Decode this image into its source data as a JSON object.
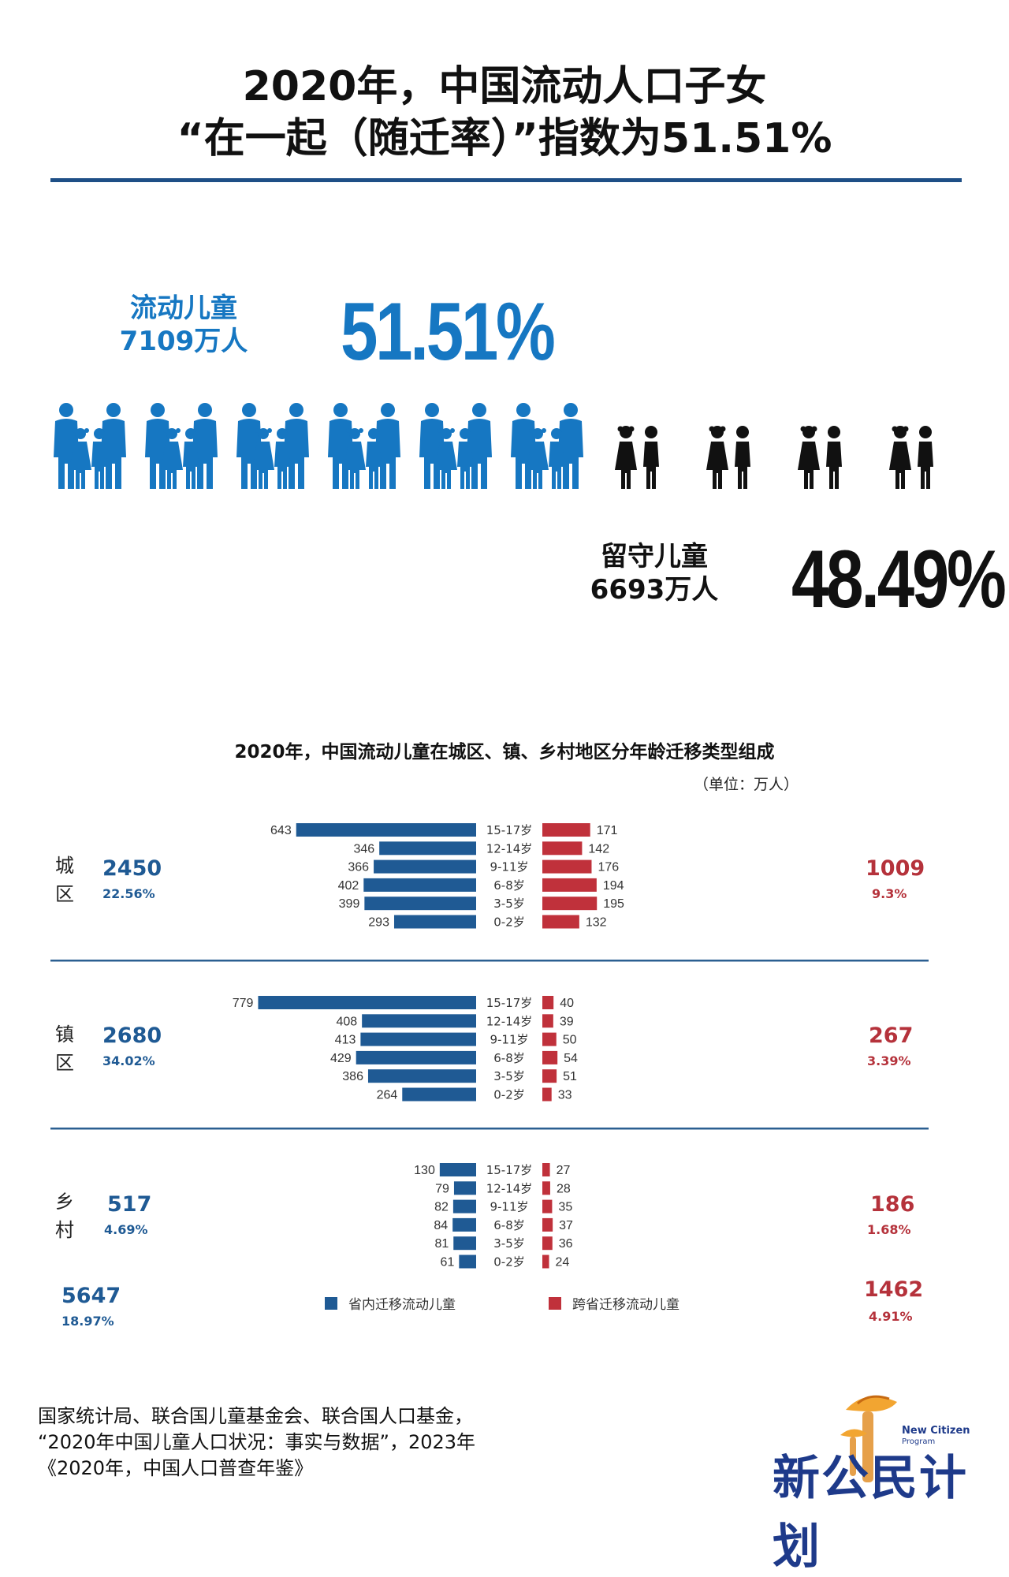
{
  "header": {
    "line1": "2020年，中国流动人口子女",
    "line2": "“在一起（随迁率）”指数为51.51%"
  },
  "flow": {
    "label_line1": "流动儿童",
    "label_line2": "7109万人",
    "percent": "51.51%",
    "fraction": 0.5151
  },
  "left_behind": {
    "label_line1": "留守儿童",
    "label_line2": "6693万人",
    "percent": "48.49%"
  },
  "colors": {
    "blue_icon": "#1677c2",
    "blue_bar": "#1f5a94",
    "red_bar": "#c0313b",
    "rule": "#1e4f86"
  },
  "chart_data": {
    "type": "bar",
    "title": "2020年，中国流动儿童在城区、镇、乡村地区分年龄迁移类型组成",
    "unit": "（单位：万人）",
    "categories": [
      "15-17岁",
      "12-14岁",
      "9-11岁",
      "6-8岁",
      "3-5岁",
      "0-2岁"
    ],
    "legend": [
      "省内迁移流动儿童",
      "跨省迁移流动儿童"
    ],
    "regions": [
      {
        "name": "城区",
        "char1": "城",
        "char2": "区",
        "intra_total": "2450",
        "intra_pct": "22.56%",
        "inter_total": "1009",
        "inter_pct": "9.3%",
        "intra": [
          643,
          346,
          366,
          402,
          399,
          293
        ],
        "inter": [
          171,
          142,
          176,
          194,
          195,
          132
        ]
      },
      {
        "name": "镇区",
        "char1": "镇",
        "char2": "区",
        "intra_total": "2680",
        "intra_pct": "34.02%",
        "inter_total": "267",
        "inter_pct": "3.39%",
        "intra": [
          779,
          408,
          413,
          429,
          386,
          264
        ],
        "inter": [
          40,
          39,
          50,
          54,
          51,
          33
        ]
      },
      {
        "name": "乡村",
        "char1": "乡",
        "char2": "村",
        "intra_total": "517",
        "intra_pct": "4.69%",
        "inter_total": "186",
        "inter_pct": "1.68%",
        "intra": [
          130,
          79,
          82,
          84,
          81,
          61
        ],
        "inter": [
          27,
          28,
          35,
          37,
          36,
          24
        ]
      }
    ],
    "totals": {
      "intra_total": "5647",
      "intra_pct": "18.97%",
      "inter_total": "1462",
      "inter_pct": "4.91%"
    }
  },
  "source": {
    "line1": "国家统计局、联合国儿童基金会、联合国人口基金，",
    "line2": "“2020年中国儿童人口状况：事实与数据”，2023年",
    "line3": "《2020年，中国人口普查年鉴》"
  },
  "logo": {
    "cn": "新公民计划",
    "en_line1": "New Citizen",
    "en_line2": "Program"
  }
}
